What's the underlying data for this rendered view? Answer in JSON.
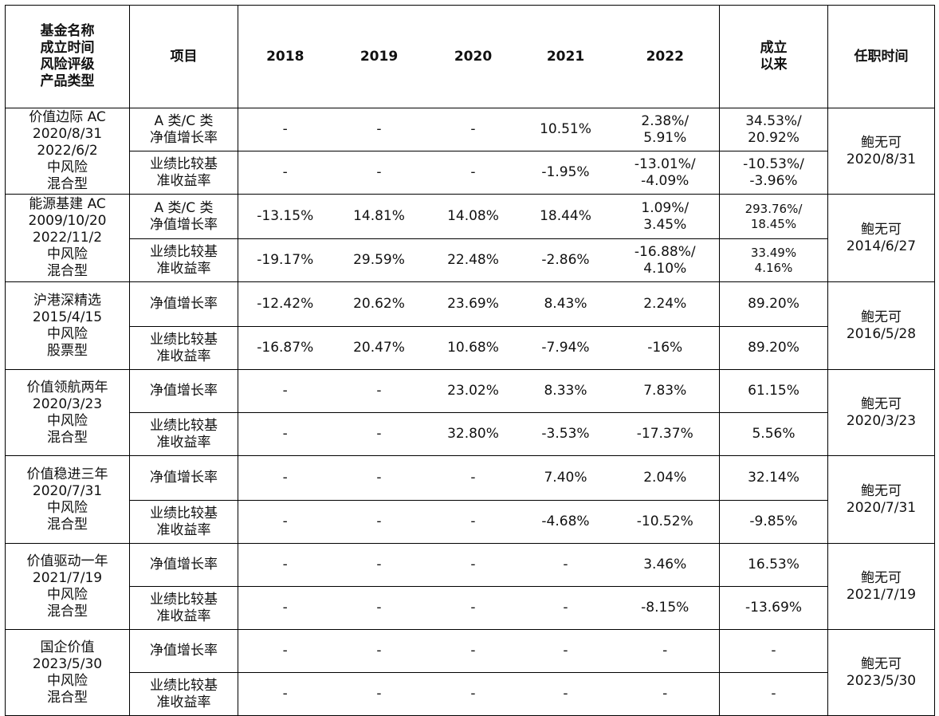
{
  "header": {
    "fund_info": [
      "基金名称",
      "成立时间",
      "风险评级",
      "产品类型"
    ],
    "item": "项目",
    "years": [
      "2018",
      "2019",
      "2020",
      "2021",
      "2022"
    ],
    "since": [
      "成立",
      "以来"
    ],
    "tenure": "任职时间"
  },
  "funds": [
    {
      "info": [
        "价值边际 AC",
        "2020/8/31",
        "2022/6/2",
        "中风险",
        "混合型"
      ],
      "manager": [
        "鲍无可",
        "2020/8/31"
      ],
      "rows": [
        {
          "item": [
            "A 类/C 类",
            "净值增长率"
          ],
          "values": [
            "-",
            "-",
            "-",
            "10.51%",
            "2.38%/\n5.91%",
            "34.53%/\n20.92%"
          ]
        },
        {
          "item": [
            "业绩比较基",
            "准收益率"
          ],
          "values": [
            "-",
            "-",
            "-",
            "-1.95%",
            "-13.01%/\n-4.09%",
            "-10.53%/\n-3.96%"
          ]
        }
      ]
    },
    {
      "info": [
        "能源基建 AC",
        "2009/10/20",
        "2022/11/2",
        "中风险",
        "混合型"
      ],
      "manager": [
        "鲍无可",
        "2014/6/27"
      ],
      "rows": [
        {
          "item": [
            "A 类/C 类",
            "净值增长率"
          ],
          "values": [
            "-13.15%",
            "14.81%",
            "14.08%",
            "18.44%",
            "1.09%/\n3.45%",
            "293.76%/\n18.45%"
          ]
        },
        {
          "item": [
            "业绩比较基",
            "准收益率"
          ],
          "values": [
            "-19.17%",
            "29.59%",
            "22.48%",
            "-2.86%",
            "-16.88%/\n4.10%",
            "33.49%\n4.16%"
          ]
        }
      ]
    },
    {
      "info": [
        "沪港深精选",
        "2015/4/15",
        "中风险",
        "股票型"
      ],
      "manager": [
        "鲍无可",
        "2016/5/28"
      ],
      "rows": [
        {
          "item": [
            "净值增长率"
          ],
          "values": [
            "-12.42%",
            "20.62%",
            "23.69%",
            "8.43%",
            "2.24%",
            "89.20%"
          ]
        },
        {
          "item": [
            "业绩比较基",
            "准收益率"
          ],
          "values": [
            "-16.87%",
            "20.47%",
            "10.68%",
            "-7.94%",
            "-16%",
            "89.20%"
          ]
        }
      ]
    },
    {
      "info": [
        "价值领航两年",
        "2020/3/23",
        "中风险",
        "混合型"
      ],
      "manager": [
        "鲍无可",
        "2020/3/23"
      ],
      "rows": [
        {
          "item": [
            "净值增长率"
          ],
          "values": [
            "-",
            "-",
            "23.02%",
            "8.33%",
            "7.83%",
            "61.15%"
          ]
        },
        {
          "item": [
            "业绩比较基",
            "准收益率"
          ],
          "values": [
            "-",
            "-",
            "32.80%",
            "-3.53%",
            "-17.37%",
            "5.56%"
          ]
        }
      ]
    },
    {
      "info": [
        "价值稳进三年",
        "2020/7/31",
        "中风险",
        "混合型"
      ],
      "manager": [
        "鲍无可",
        "2020/7/31"
      ],
      "rows": [
        {
          "item": [
            "净值增长率"
          ],
          "values": [
            "-",
            "-",
            "-",
            "7.40%",
            "2.04%",
            "32.14%"
          ]
        },
        {
          "item": [
            "业绩比较基",
            "准收益率"
          ],
          "values": [
            "-",
            "-",
            "-",
            "-4.68%",
            "-10.52%",
            "-9.85%"
          ]
        }
      ]
    },
    {
      "info": [
        "价值驱动一年",
        "2021/7/19",
        "中风险",
        "混合型"
      ],
      "manager": [
        "鲍无可",
        "2021/7/19"
      ],
      "rows": [
        {
          "item": [
            "净值增长率"
          ],
          "values": [
            "-",
            "-",
            "-",
            "-",
            "3.46%",
            "16.53%"
          ]
        },
        {
          "item": [
            "业绩比较基",
            "准收益率"
          ],
          "values": [
            "-",
            "-",
            "-",
            "-",
            "-8.15%",
            "-13.69%"
          ]
        }
      ]
    },
    {
      "info": [
        "国企价值",
        "2023/5/30",
        "中风险",
        "混合型"
      ],
      "manager": [
        "鲍无可",
        "2023/5/30"
      ],
      "rows": [
        {
          "item": [
            "净值增长率"
          ],
          "values": [
            "-",
            "-",
            "-",
            "-",
            "-",
            "-"
          ]
        },
        {
          "item": [
            "业绩比较基",
            "准收益率"
          ],
          "values": [
            "-",
            "-",
            "-",
            "-",
            "-",
            "-"
          ]
        }
      ]
    }
  ]
}
